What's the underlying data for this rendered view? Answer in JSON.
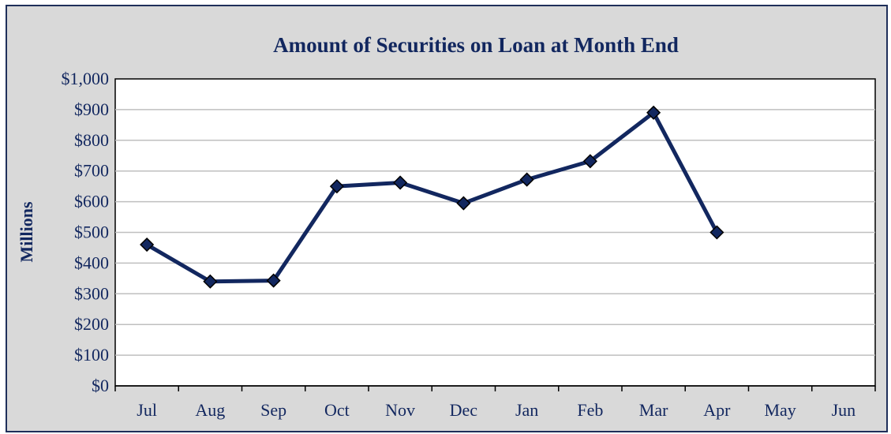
{
  "chart_data": {
    "type": "line",
    "title": "Amount of Securities on Loan at Month End",
    "xlabel": "",
    "ylabel": "Millions",
    "categories": [
      "Jul",
      "Aug",
      "Sep",
      "Oct",
      "Nov",
      "Dec",
      "Jan",
      "Feb",
      "Mar",
      "Apr",
      "May",
      "Jun"
    ],
    "series": [
      {
        "values": [
          460,
          340,
          343,
          650,
          662,
          595,
          672,
          732,
          890,
          500,
          null,
          null
        ]
      }
    ],
    "ylim": [
      0,
      1000
    ],
    "yticks": [
      "$0",
      "$100",
      "$200",
      "$300",
      "$400",
      "$500",
      "$600",
      "$700",
      "$800",
      "$900",
      "$1,000"
    ],
    "grid": true,
    "colors": {
      "line": "#12275f",
      "marker": "#12275f",
      "text": "#12275f",
      "background": "#d9d9d9",
      "plot": "#ffffff",
      "grid": "#bfbfbf"
    }
  }
}
